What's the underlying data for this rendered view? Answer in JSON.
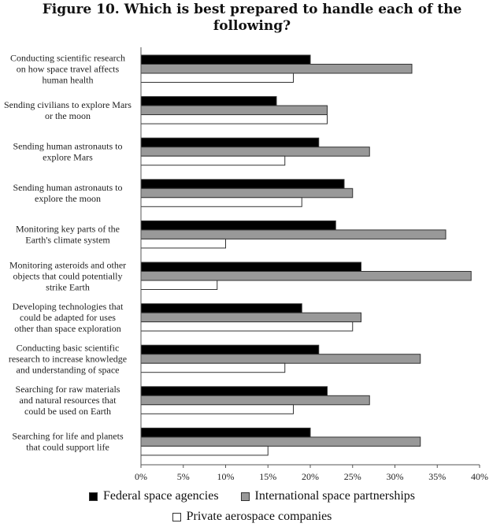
{
  "chart_data": {
    "type": "bar",
    "orientation": "horizontal",
    "title_lines": [
      "Figure 10. Which is best prepared to handle each of  the",
      "following?"
    ],
    "categories": [
      [
        "Conducting scientific research",
        "on how space travel affects",
        "human health"
      ],
      [
        "Sending civilians to explore Mars",
        "or the moon"
      ],
      [
        "Sending human astronauts to",
        "explore Mars"
      ],
      [
        "Sending human astronauts to",
        "explore the moon"
      ],
      [
        "Monitoring key parts of the",
        "Earth's climate system"
      ],
      [
        "Monitoring asteroids and other",
        "objects that could potentially",
        "strike Earth"
      ],
      [
        "Developing technologies that",
        "could be adapted for uses",
        "other than space exploration"
      ],
      [
        "Conducting basic scientific",
        "research to increase knowledge",
        "and understanding of space"
      ],
      [
        "Searching for raw materials",
        "and natural resources that",
        "could be used on Earth"
      ],
      [
        "Searching for life and planets",
        "that could support life"
      ]
    ],
    "series": [
      {
        "name": "Federal space agencies",
        "color": "#000000",
        "values": [
          20,
          16,
          21,
          24,
          23,
          26,
          19,
          21,
          22,
          20
        ]
      },
      {
        "name": "International space partnerships",
        "color": "#999999",
        "values": [
          32,
          22,
          27,
          25,
          36,
          39,
          26,
          33,
          27,
          33
        ]
      },
      {
        "name": "Private aerospace companies",
        "color": "#ffffff",
        "values": [
          18,
          22,
          17,
          19,
          10,
          9,
          25,
          17,
          18,
          15
        ]
      }
    ],
    "xlim": [
      0,
      40
    ],
    "xticks": [
      "0%",
      "5%",
      "10%",
      "15%",
      "20%",
      "25%",
      "30%",
      "35%",
      "40%"
    ],
    "grid": false,
    "legend_position": "bottom"
  }
}
